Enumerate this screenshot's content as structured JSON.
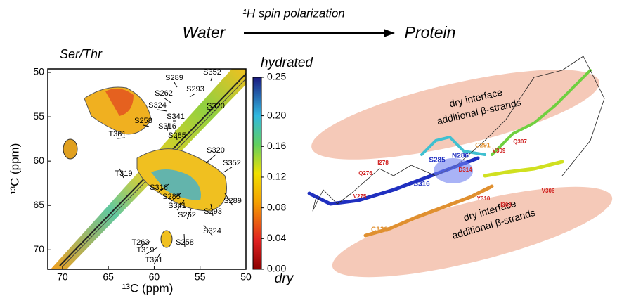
{
  "header": {
    "source": "Water",
    "arrow_label": "¹H spin polarization",
    "target": "Protein"
  },
  "spectrum": {
    "title": "Ser/Thr",
    "x_label": "¹³C (ppm)",
    "y_label": "¹³C (ppm)",
    "xlim": [
      71.6,
      50
    ],
    "ylim": [
      49.6,
      72.2
    ],
    "xticks": [
      70,
      65,
      60,
      55,
      50
    ],
    "yticks": [
      50,
      55,
      60,
      65,
      70
    ],
    "peaks": [
      "S289",
      "S352",
      "S293",
      "S262",
      "S324",
      "S320",
      "S258",
      "S341",
      "S316",
      "S285",
      "T361",
      "T319",
      "S320",
      "S352",
      "S316",
      "S285",
      "S341",
      "S262",
      "S289",
      "S293",
      "S324",
      "S258",
      "T263",
      "T319",
      "T361"
    ]
  },
  "colorbar": {
    "top_label": "hydrated",
    "bottom_label": "dry",
    "lim": [
      0,
      0.25
    ],
    "ticks": [
      0.25,
      {
        "value": 0.2,
        "label": "0.20"
      },
      0.16,
      0.12,
      0.08,
      0.04,
      {
        "value": 0,
        "label": "0.00"
      }
    ]
  },
  "structure": {
    "interfaces": [
      {
        "line1": "dry interface",
        "line2": "additional β-strands"
      },
      {
        "line1": "dry interface",
        "line2": "additional β-strands"
      }
    ],
    "residues": [
      "S285",
      "N286",
      "S316",
      "C291",
      "Q307",
      "V309",
      "I278",
      "Q276",
      "D314",
      "Y310",
      "I308",
      "V306",
      "V275",
      "C322"
    ]
  }
}
